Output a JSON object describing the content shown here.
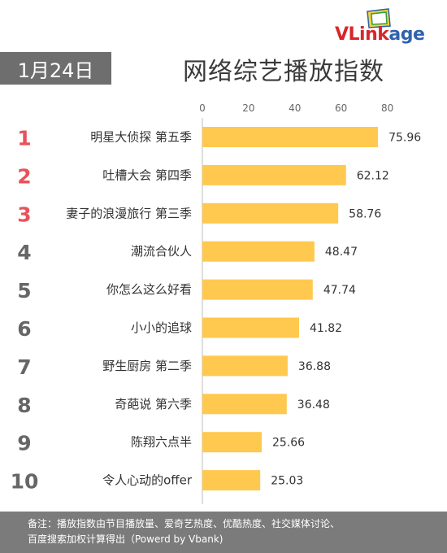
{
  "brand": {
    "logo_part1": "VLink",
    "logo_part2": "age"
  },
  "header": {
    "date": "1月24日",
    "title": "网络综艺播放指数"
  },
  "chart_data": {
    "type": "bar",
    "orientation": "horizontal",
    "title": "网络综艺播放指数",
    "x_ticks": [
      "0",
      "20",
      "40",
      "60",
      "80"
    ],
    "xlim": [
      0,
      80
    ],
    "ranks": [
      "1",
      "2",
      "3",
      "4",
      "5",
      "6",
      "7",
      "8",
      "9",
      "10"
    ],
    "categories": [
      "明星大侦探 第五季",
      "吐槽大会 第四季",
      "妻子的浪漫旅行 第三季",
      "潮流合伙人",
      "你怎么这么好看",
      "小小的追球",
      "野生厨房 第二季",
      "奇葩说 第六季",
      "陈翔六点半",
      "令人心动的offer"
    ],
    "values": [
      75.96,
      62.12,
      58.76,
      48.47,
      47.74,
      41.82,
      36.88,
      36.48,
      25.66,
      25.03
    ],
    "value_labels": [
      "75.96",
      "62.12",
      "58.76",
      "48.47",
      "47.74",
      "41.82",
      "36.88",
      "36.48",
      "25.66",
      "25.03"
    ],
    "bar_color": "#ffc84f",
    "top_rank_color": "#e8525a",
    "rank_color": "#666666",
    "grid": false
  },
  "footer": {
    "line1": "备注：播放指数由节目播放量、爱奇艺热度、优酷热度、社交媒体讨论、",
    "line2": "百度搜索加权计算得出（Powerd by Vbank)"
  }
}
